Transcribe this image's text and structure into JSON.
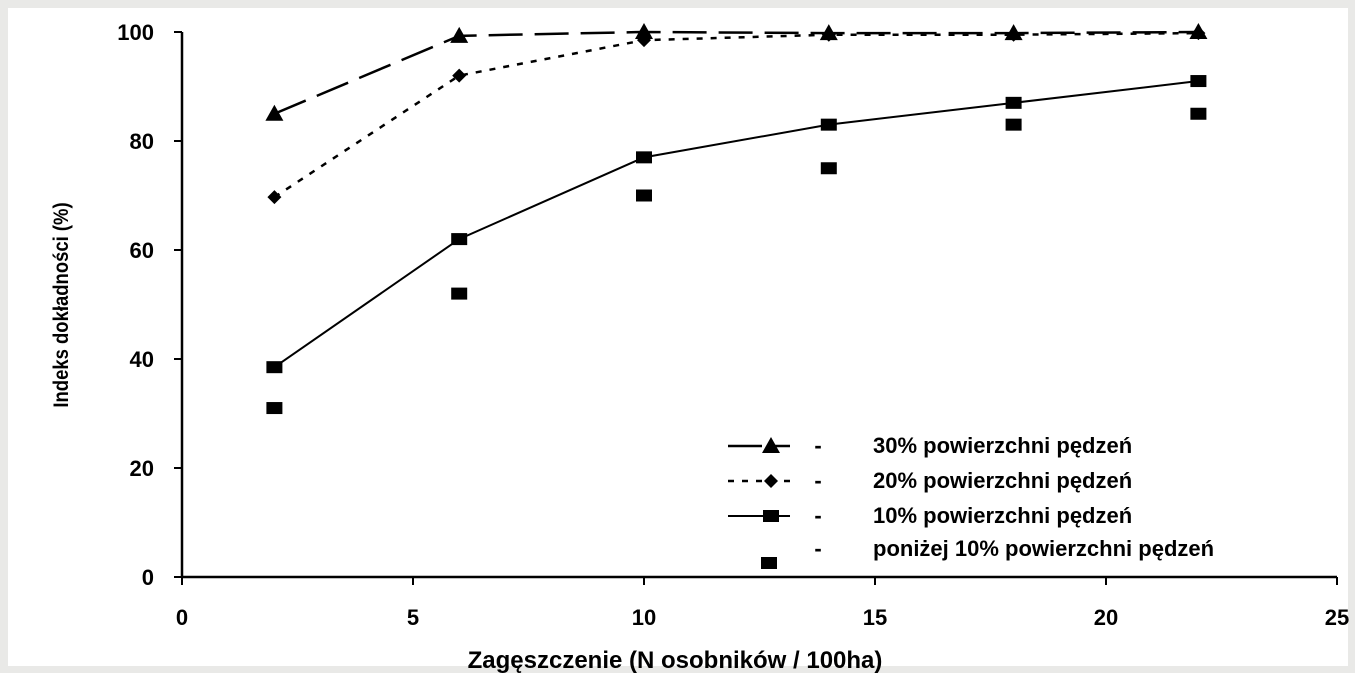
{
  "chart_data": {
    "type": "line",
    "title": "",
    "xlabel": "Zagęszczenie (N osobników / 100ha)",
    "ylabel": "Indeks dokładności (%)",
    "xlim": [
      0,
      25
    ],
    "ylim": [
      0,
      100
    ],
    "xticks": [
      0,
      5,
      10,
      15,
      20,
      25
    ],
    "yticks": [
      0,
      20,
      40,
      60,
      80,
      100
    ],
    "grid": false,
    "legend_position": "bottom-right",
    "x": [
      2,
      6,
      10,
      14,
      18,
      22
    ],
    "series": [
      {
        "name": "30% powierzchni pędzeń",
        "values": [
          85,
          99.3,
          100,
          99.8,
          99.8,
          100
        ],
        "marker": "triangle",
        "line": "long-dash",
        "color": "#000000"
      },
      {
        "name": "20% powierzchni pędzeń",
        "values": [
          69.7,
          92,
          98.5,
          99.5,
          99.5,
          99.8
        ],
        "marker": "diamond",
        "line": "short-dash",
        "color": "#000000"
      },
      {
        "name": "10% powierzchni pędzeń",
        "values": [
          38.5,
          62,
          77,
          83,
          87,
          91
        ],
        "marker": "square",
        "line": "solid",
        "color": "#000000"
      },
      {
        "name": "poniżej 10% powierzchni pędzeń",
        "values": [
          31,
          52,
          70,
          75,
          83,
          85
        ],
        "marker": "square",
        "line": "none",
        "color": "#000000"
      }
    ],
    "legend_separator": "-"
  }
}
